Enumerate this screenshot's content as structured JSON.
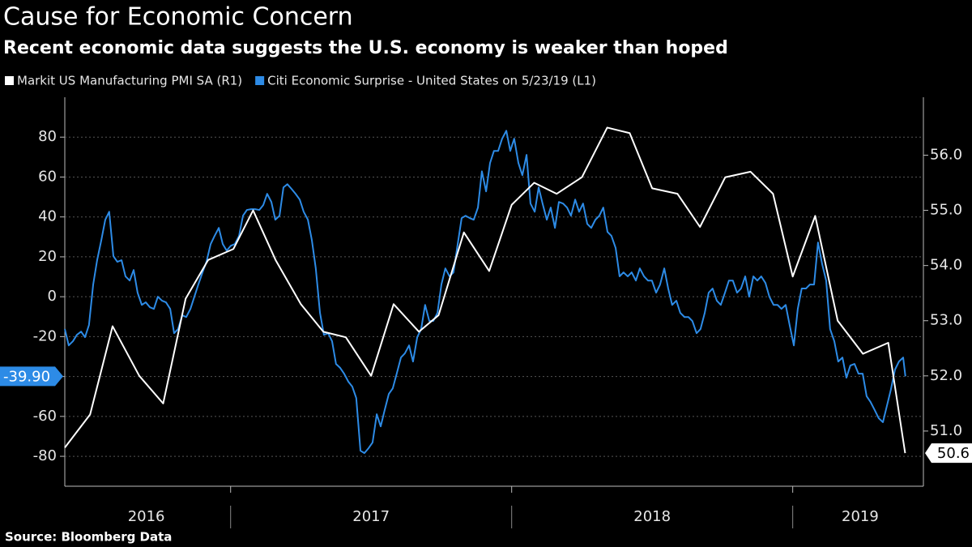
{
  "chart_data": {
    "type": "line",
    "title": "Cause for Economic Concern",
    "subtitle": "Recent economic data suggests the U.S. economy is weaker than hoped",
    "source": "Source: Bloomberg Data",
    "xlim": [
      2016.41,
      2019.465
    ],
    "xticks": [
      {
        "value": 2016.7,
        "label": "2016"
      },
      {
        "value": 2017.5,
        "label": "2017"
      },
      {
        "value": 2018.5,
        "label": "2018"
      },
      {
        "value": 2019.24,
        "label": "2019"
      }
    ],
    "xseparators": [
      2017,
      2018,
      2019
    ],
    "ylim": [
      -95,
      100
    ],
    "yticks": [
      -80,
      -60,
      -40,
      -20,
      0,
      20,
      40,
      60,
      80
    ],
    "y2lim": [
      50,
      57.05
    ],
    "y2ticks": [
      {
        "value": 51,
        "label": "51.0"
      },
      {
        "value": 52,
        "label": "52.0"
      },
      {
        "value": 53,
        "label": "53.0"
      },
      {
        "value": 54,
        "label": "54.0"
      },
      {
        "value": 55,
        "label": "55.0"
      },
      {
        "value": 56,
        "label": "56.0"
      }
    ],
    "grid": true,
    "series": [
      {
        "name": "Markit US Manufacturing PMI SA  (R1)",
        "color": "#ffffff",
        "axis": "y2",
        "x": [
          2016.41,
          2016.5,
          2016.58,
          2016.675,
          2016.76,
          2016.84,
          2016.92,
          2017.01,
          2017.08,
          2017.16,
          2017.25,
          2017.33,
          2017.41,
          2017.5,
          2017.58,
          2017.67,
          2017.74,
          2017.83,
          2017.92,
          2018.0,
          2018.08,
          2018.16,
          2018.25,
          2018.34,
          2018.42,
          2018.5,
          2018.59,
          2018.67,
          2018.76,
          2018.85,
          2018.93,
          2019.0,
          2019.08,
          2019.16,
          2019.25,
          2019.34,
          2019.4
        ],
        "values": [
          50.7,
          51.3,
          52.9,
          52.0,
          51.5,
          53.4,
          54.1,
          54.3,
          55.0,
          54.1,
          53.3,
          52.8,
          52.7,
          52.0,
          53.3,
          52.8,
          53.1,
          54.6,
          53.9,
          55.1,
          55.5,
          55.3,
          55.6,
          56.5,
          56.4,
          55.4,
          55.3,
          54.7,
          55.6,
          55.7,
          55.3,
          53.8,
          54.9,
          53.0,
          52.4,
          52.6,
          50.6
        ]
      },
      {
        "name": "Citi Economic Surprise - United States  on 5/23/19 (L1)",
        "color": "#2d8be6",
        "x": [
          2016.41,
          2016.424,
          2016.439,
          2016.453,
          2016.468,
          2016.482,
          2016.496,
          2016.511,
          2016.525,
          2016.54,
          2016.554,
          2016.568,
          2016.583,
          2016.597,
          2016.612,
          2016.626,
          2016.641,
          2016.655,
          2016.669,
          2016.684,
          2016.698,
          2016.713,
          2016.727,
          2016.741,
          2016.756,
          2016.77,
          2016.785,
          2016.799,
          2016.813,
          2016.828,
          2016.842,
          2016.857,
          2016.871,
          2016.885,
          2016.9,
          2016.914,
          2016.929,
          2016.943,
          2016.958,
          2016.972,
          2016.986,
          2017.001,
          2017.015,
          2017.03,
          2017.044,
          2017.058,
          2017.073,
          2017.087,
          2017.102,
          2017.116,
          2017.13,
          2017.145,
          2017.159,
          2017.174,
          2017.188,
          2017.202,
          2017.217,
          2017.231,
          2017.246,
          2017.26,
          2017.275,
          2017.289,
          2017.303,
          2017.318,
          2017.332,
          2017.347,
          2017.361,
          2017.375,
          2017.39,
          2017.404,
          2017.419,
          2017.433,
          2017.447,
          2017.462,
          2017.476,
          2017.491,
          2017.505,
          2017.52,
          2017.534,
          2017.548,
          2017.563,
          2017.577,
          2017.591,
          2017.606,
          2017.62,
          2017.635,
          2017.649,
          2017.664,
          2017.678,
          2017.692,
          2017.707,
          2017.721,
          2017.736,
          2017.75,
          2017.764,
          2017.779,
          2017.793,
          2017.808,
          2017.822,
          2017.836,
          2017.851,
          2017.865,
          2017.88,
          2017.894,
          2017.909,
          2017.923,
          2017.937,
          2017.952,
          2017.966,
          2017.981,
          2017.995,
          2018.009,
          2018.024,
          2018.038,
          2018.053,
          2018.067,
          2018.082,
          2018.096,
          2018.11,
          2018.125,
          2018.139,
          2018.154,
          2018.168,
          2018.183,
          2018.197,
          2018.211,
          2018.226,
          2018.24,
          2018.254,
          2018.269,
          2018.283,
          2018.298,
          2018.312,
          2018.326,
          2018.341,
          2018.355,
          2018.37,
          2018.384,
          2018.398,
          2018.413,
          2018.427,
          2018.442,
          2018.456,
          2018.471,
          2018.485,
          2018.499,
          2018.514,
          2018.528,
          2018.543,
          2018.557,
          2018.571,
          2018.586,
          2018.6,
          2018.615,
          2018.629,
          2018.643,
          2018.658,
          2018.672,
          2018.687,
          2018.701,
          2018.715,
          2018.73,
          2018.744,
          2018.759,
          2018.773,
          2018.787,
          2018.802,
          2018.816,
          2018.831,
          2018.845,
          2018.86,
          2018.874,
          2018.888,
          2018.903,
          2018.917,
          2018.932,
          2018.946,
          2018.96,
          2018.975,
          2018.989,
          2019.004,
          2019.018,
          2019.032,
          2019.047,
          2019.061,
          2019.076,
          2019.09,
          2019.105,
          2019.119,
          2019.133,
          2019.148,
          2019.162,
          2019.177,
          2019.191,
          2019.205,
          2019.22,
          2019.234,
          2019.249,
          2019.263,
          2019.277,
          2019.292,
          2019.306,
          2019.321,
          2019.335,
          2019.349,
          2019.364,
          2019.378,
          2019.393,
          2019.401
        ],
        "values": [
          -16.2,
          -24.4,
          -22.3,
          -19.1,
          -17.5,
          -20.3,
          -14.2,
          6.1,
          18.3,
          28.4,
          38.6,
          42.6,
          20.3,
          17.5,
          18.3,
          10.2,
          8.1,
          13.4,
          2.0,
          -4.1,
          -2.8,
          -5.3,
          -6.1,
          0,
          -2.0,
          -2.8,
          -6.1,
          -18.3,
          -16.2,
          -9.3,
          -10.2,
          -6.1,
          0,
          6.1,
          12.2,
          17.5,
          26.4,
          30.5,
          34.5,
          26.4,
          23.1,
          25.6,
          26.4,
          30.5,
          40.6,
          43.5,
          43.9,
          43.9,
          43.5,
          45.9,
          51.6,
          47.5,
          38.6,
          40.6,
          54.8,
          56.4,
          54.0,
          51.6,
          48.7,
          42.6,
          38.6,
          28.4,
          14.2,
          -8.1,
          -19.1,
          -18.3,
          -22.3,
          -33.7,
          -35.7,
          -38.6,
          -42.6,
          -45.1,
          -50.8,
          -77.2,
          -78.4,
          -75.9,
          -73.1,
          -58.9,
          -65.0,
          -56.9,
          -48.7,
          -45.9,
          -38.6,
          -30.5,
          -28.4,
          -24.4,
          -32.5,
          -20.3,
          -16.2,
          -4.1,
          -12.2,
          -12.2,
          -8.1,
          6.1,
          14.2,
          10.2,
          12.2,
          26.4,
          39.4,
          40.6,
          39.4,
          38.6,
          44.7,
          62.9,
          52.8,
          67.0,
          73.1,
          73.1,
          79.2,
          83.2,
          73.1,
          79.2,
          67.0,
          60.9,
          71.1,
          46.7,
          42.6,
          54.8,
          46.7,
          38.6,
          44.7,
          34.5,
          47.5,
          46.7,
          44.7,
          40.6,
          48.7,
          42.6,
          46.7,
          36.5,
          34.5,
          38.6,
          40.6,
          44.7,
          32.5,
          30.5,
          24.4,
          10.2,
          12.2,
          10.2,
          12.2,
          8.1,
          14.2,
          10.2,
          8.1,
          8.1,
          2.0,
          6.1,
          14.2,
          4.1,
          -4.1,
          -2.0,
          -8.1,
          -10.2,
          -10.2,
          -12.2,
          -18.3,
          -16.2,
          -8.1,
          2.0,
          4.1,
          -2.0,
          -4.1,
          2.0,
          8.1,
          8.1,
          2.0,
          4.1,
          10.2,
          0,
          10.2,
          8.1,
          10.2,
          6.9,
          0,
          -4.1,
          -4.1,
          -6.1,
          -4.1,
          -14.2,
          -24.4,
          -6.1,
          4.1,
          4.1,
          6.1,
          6.1,
          27.2,
          16.2,
          8.1,
          -16.2,
          -22.3,
          -32.5,
          -30.5,
          -40.6,
          -34.5,
          -33.7,
          -38.6,
          -38.6,
          -49.9,
          -52.8,
          -56.9,
          -60.9,
          -62.9,
          -54.8,
          -46.7,
          -36.5,
          -32.5,
          -30.5,
          -39.9
        ],
        "value_labels": [
          null,
          null,
          null,
          null,
          null,
          null,
          null,
          null,
          null,
          null,
          null,
          null,
          null,
          null,
          null,
          null,
          null,
          null,
          null,
          null,
          null,
          null,
          null,
          null,
          null,
          null,
          null,
          null,
          null,
          null,
          null,
          null,
          null,
          null,
          null,
          null,
          null,
          null,
          null,
          null,
          null,
          null,
          null,
          null,
          null,
          null,
          null,
          null,
          null,
          null,
          null,
          null,
          null,
          null,
          null,
          null,
          null,
          null,
          null,
          null,
          null,
          null,
          null,
          null,
          null,
          null,
          null,
          null,
          null,
          null,
          null,
          null,
          null,
          null,
          null,
          null,
          null,
          null,
          null,
          null,
          null,
          null,
          null,
          null,
          null,
          null,
          null,
          null,
          null,
          null,
          null,
          null,
          null,
          null,
          null,
          null,
          null,
          null,
          null,
          null,
          null,
          null,
          null,
          null,
          null,
          null,
          null,
          null,
          null,
          null,
          null,
          null,
          null,
          null,
          null,
          null,
          null,
          null,
          null,
          null,
          null,
          null,
          null,
          null,
          null,
          null,
          null,
          null,
          null,
          null,
          null,
          null,
          null,
          null,
          null,
          null,
          null,
          null,
          null,
          null,
          null,
          null,
          null,
          null,
          null,
          null,
          null,
          null,
          null,
          null,
          null,
          null,
          null,
          null,
          null,
          null,
          null,
          null,
          null,
          null,
          null,
          null,
          null,
          null,
          null,
          null,
          null,
          null,
          null,
          null,
          null,
          null,
          null,
          null,
          null,
          null,
          null,
          null,
          null,
          null,
          null,
          null,
          null,
          null,
          null,
          null,
          null,
          null,
          null,
          null,
          null,
          null,
          null,
          null,
          null,
          null,
          null,
          null,
          null,
          null,
          null,
          null,
          null,
          null,
          null,
          null,
          null,
          null,
          "-39.90"
        ]
      }
    ]
  }
}
